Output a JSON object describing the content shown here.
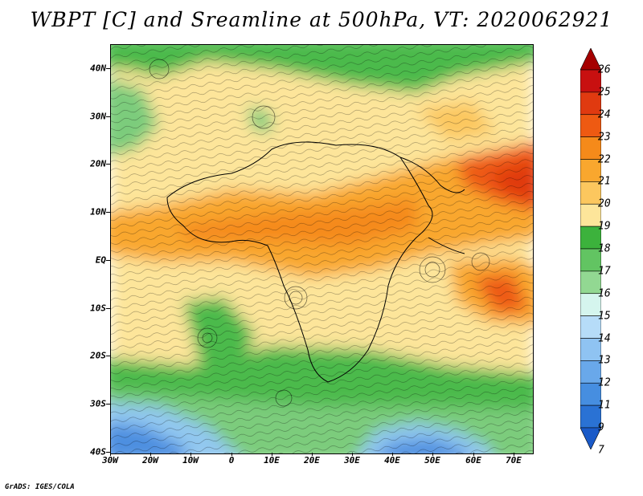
{
  "title": "WBPT [C] and Sreamline at 500hPa, VT: 2020062921",
  "credit": "GrADS: IGES/COLA",
  "map": {
    "variable": "Wet-bulb potential temperature with streamlines",
    "level": "500hPa",
    "lat_labels": [
      "40N",
      "30N",
      "20N",
      "10N",
      "EQ",
      "10S",
      "20S",
      "30S",
      "40S"
    ],
    "lon_labels": [
      "30W",
      "20W",
      "10W",
      "0",
      "10E",
      "20E",
      "30E",
      "40E",
      "50E",
      "60E",
      "70E"
    ]
  },
  "colorbar": {
    "labels": [
      "26",
      "25",
      "24",
      "23",
      "22",
      "21",
      "20",
      "19",
      "18",
      "17",
      "16",
      "15",
      "14",
      "13",
      "12",
      "11",
      "9",
      "7"
    ],
    "colors": [
      "#a50000",
      "#c81010",
      "#e03a10",
      "#ee5a12",
      "#f58a1a",
      "#f9a72e",
      "#fcc75e",
      "#fde59a",
      "#3cb23c",
      "#62c462",
      "#92d892",
      "#d5f5ee",
      "#b6dcf8",
      "#8fc3f2",
      "#69a8ea",
      "#468ee0",
      "#2a72d4",
      "#1a5ac8"
    ]
  }
}
